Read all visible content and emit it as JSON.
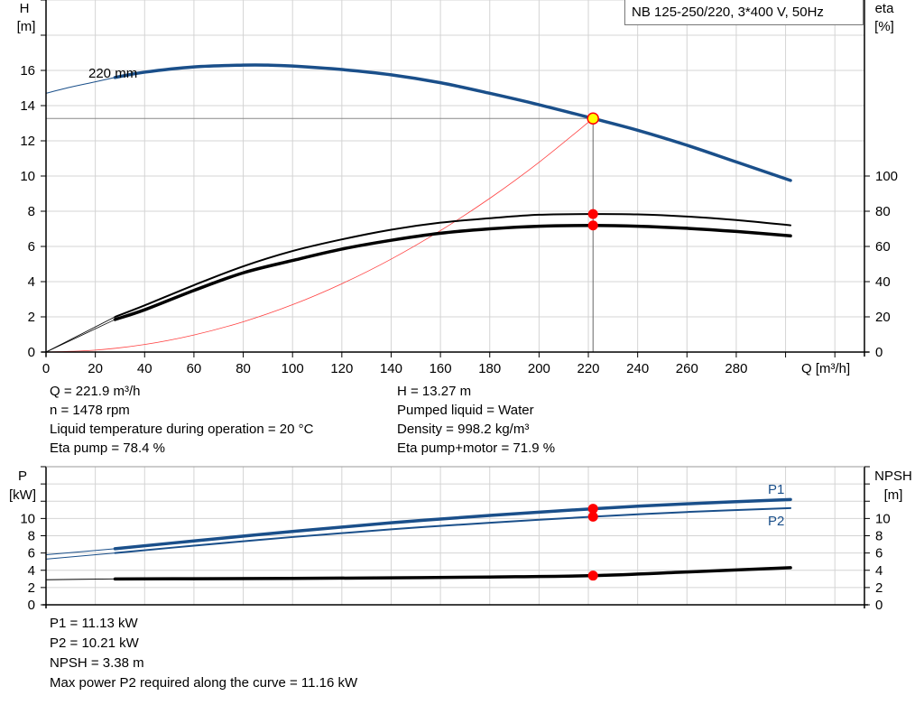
{
  "chart_data": [
    {
      "type": "line",
      "title": "NB 125-250/220, 3*400 V, 50Hz",
      "xlabel": "Q [m³/h]",
      "ylabel_left": {
        "name": "H",
        "unit": "[m]"
      },
      "ylabel_right": {
        "name": "eta",
        "unit": "[%]"
      },
      "xlim": [
        0,
        332
      ],
      "ylim_left": [
        0,
        20
      ],
      "ylim_right": [
        0,
        200
      ],
      "x_ticks": [
        "0",
        "20",
        "40",
        "60",
        "80",
        "100",
        "120",
        "140",
        "160",
        "180",
        "200",
        "220",
        "240",
        "260",
        "280"
      ],
      "y_left_ticks": [
        "0",
        "2",
        "4",
        "6",
        "8",
        "10",
        "12",
        "14",
        "16"
      ],
      "y_right_ticks": [
        "0",
        "20",
        "40",
        "60",
        "80",
        "100"
      ],
      "grid": true,
      "annotations": [
        {
          "text": "220 mm"
        }
      ],
      "series": [
        {
          "key": "head",
          "axis": "left",
          "color": "#1a4f8a",
          "x": [
            0,
            10,
            20,
            28,
            40,
            60,
            80,
            90,
            100,
            120,
            140,
            160,
            180,
            200,
            221.9,
            240,
            260,
            280,
            302
          ],
          "y": [
            14.7,
            15.05,
            15.35,
            15.6,
            15.9,
            16.2,
            16.3,
            16.3,
            16.25,
            16.05,
            15.75,
            15.3,
            14.7,
            14.05,
            13.27,
            12.6,
            11.75,
            10.8,
            9.75
          ]
        },
        {
          "key": "eta_pump",
          "axis": "right",
          "color": "#000000",
          "x": [
            0,
            28,
            40,
            60,
            80,
            100,
            120,
            140,
            160,
            180,
            200,
            221.9,
            240,
            260,
            280,
            302
          ],
          "y": [
            0,
            20,
            26.5,
            38,
            48.7,
            57.4,
            64,
            69.5,
            73.5,
            76,
            78,
            78.4,
            78.2,
            77,
            75,
            72
          ]
        },
        {
          "key": "eta_pump_motor",
          "axis": "right",
          "color": "#000000",
          "x": [
            0,
            28,
            40,
            60,
            80,
            100,
            120,
            140,
            160,
            180,
            200,
            221.9,
            240,
            260,
            280,
            302
          ],
          "y": [
            0,
            18.5,
            24,
            35,
            45,
            52,
            58.5,
            63.5,
            67.5,
            70,
            71.5,
            71.9,
            71.5,
            70.3,
            68.5,
            66
          ]
        },
        {
          "key": "system_curve",
          "axis": "left",
          "color": "#ff4040",
          "x": [
            0,
            20,
            40,
            60,
            80,
            100,
            120,
            140,
            160,
            180,
            200,
            221.9
          ],
          "y": [
            0,
            0.11,
            0.43,
            0.97,
            1.72,
            2.69,
            3.88,
            5.28,
            6.9,
            8.73,
            10.78,
            13.27
          ]
        }
      ],
      "operating_point": {
        "Q": 221.9,
        "H": 13.27,
        "eta_pump": 78.4,
        "eta_pump_motor": 71.9
      }
    },
    {
      "type": "line",
      "xlim": [
        0,
        332
      ],
      "ylabel_left": {
        "name": "P",
        "unit": "[kW]"
      },
      "ylabel_right": {
        "name": "NPSH",
        "unit": "[m]"
      },
      "ylim": [
        0,
        16
      ],
      "y_ticks": [
        "0",
        "2",
        "4",
        "6",
        "8",
        "10"
      ],
      "grid": true,
      "series": [
        {
          "key": "P1",
          "name": "P1",
          "color": "#1a4f8a",
          "x": [
            0,
            28,
            60,
            100,
            140,
            180,
            221.9,
            260,
            302
          ],
          "y": [
            5.8,
            6.5,
            7.4,
            8.5,
            9.5,
            10.35,
            11.13,
            11.7,
            12.2
          ]
        },
        {
          "key": "P2",
          "name": "P2",
          "color": "#1a4f8a",
          "x": [
            0,
            28,
            60,
            100,
            140,
            180,
            221.9,
            260,
            302
          ],
          "y": [
            5.3,
            6.0,
            6.85,
            7.85,
            8.75,
            9.5,
            10.21,
            10.75,
            11.2
          ]
        },
        {
          "key": "NPSH",
          "color": "#000000",
          "x": [
            0,
            28,
            60,
            100,
            140,
            180,
            221.9,
            260,
            302
          ],
          "y": [
            2.9,
            3.0,
            3.02,
            3.06,
            3.12,
            3.22,
            3.38,
            3.8,
            4.3
          ]
        }
      ],
      "operating_point": {
        "Q": 221.9,
        "P1": 11.13,
        "P2": 10.21,
        "NPSH": 3.38
      }
    }
  ],
  "info_top": {
    "left": [
      "Q = 221.9 m³/h",
      "n = 1478 rpm",
      "Liquid temperature during operation = 20 °C",
      "Eta pump = 78.4 %"
    ],
    "right": [
      "H = 13.27 m",
      "Pumped liquid = Water",
      "Density = 998.2 kg/m³",
      "Eta pump+motor = 71.9 %"
    ]
  },
  "info_bottom": [
    "P1 = 11.13 kW",
    "P2 = 10.21 kW",
    "NPSH = 3.38 m",
    "Max power P2 required along the curve = 11.16 kW"
  ],
  "colors": {
    "curve_blue": "#1a4f8a",
    "marker_red": "#ff0000",
    "operating_point_fill": "#ffff00",
    "grid": "#d4d4d4"
  }
}
